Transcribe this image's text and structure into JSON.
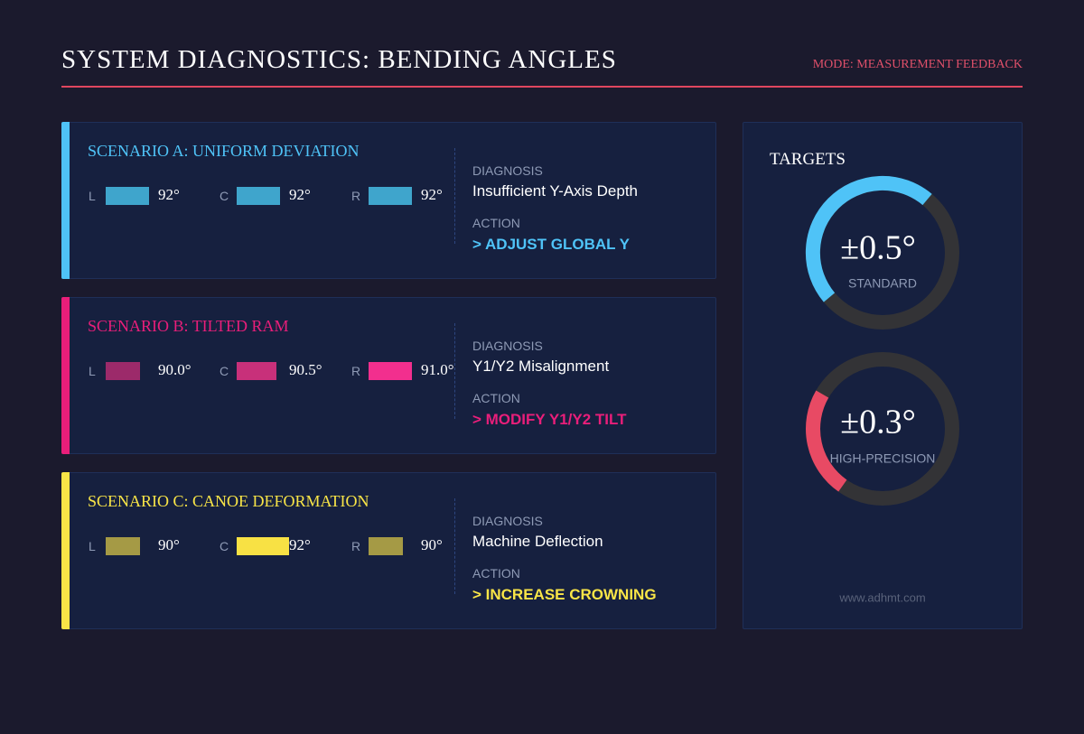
{
  "header": {
    "title": "SYSTEM DIAGNOSTICS: BENDING ANGLES",
    "mode": "MODE: MEASUREMENT FEEDBACK"
  },
  "scenarios": [
    {
      "title": "SCENARIO A: UNIFORM DEVIATION",
      "color": "#4fc3f7",
      "readings": [
        {
          "side": "L",
          "value": "92°",
          "color": "#3fa5cc"
        },
        {
          "side": "C",
          "value": "92°",
          "color": "#3fa5cc"
        },
        {
          "side": "R",
          "value": "92°",
          "color": "#3fa5cc"
        }
      ],
      "diagnosis_label": "DIAGNOSIS",
      "diagnosis": "Insufficient Y-Axis Depth",
      "action_label": "ACTION",
      "action": "> ADJUST GLOBAL Y"
    },
    {
      "title": "SCENARIO B: TILTED RAM",
      "color": "#e91e7a",
      "readings": [
        {
          "side": "L",
          "value": "90.0°",
          "color": "#9c2a6a"
        },
        {
          "side": "C",
          "value": "90.5°",
          "color": "#c8307a"
        },
        {
          "side": "R",
          "value": "91.0°",
          "color": "#f22f8e"
        }
      ],
      "diagnosis_label": "DIAGNOSIS",
      "diagnosis": "Y1/Y2 Misalignment",
      "action_label": "ACTION",
      "action": "> MODIFY Y1/Y2 TILT"
    },
    {
      "title": "SCENARIO C: CANOE DEFORMATION",
      "color": "#f9e547",
      "readings": [
        {
          "side": "L",
          "value": "90°",
          "color": "#a59a45"
        },
        {
          "side": "C",
          "value": "92°",
          "color": "#f8e144"
        },
        {
          "side": "R",
          "value": "90°",
          "color": "#a59a45"
        }
      ],
      "diagnosis_label": "DIAGNOSIS",
      "diagnosis": "Machine Deflection",
      "action_label": "ACTION",
      "action": "> INCREASE CROWNING"
    }
  ],
  "targets": {
    "title": "TARGETS",
    "gauges": [
      {
        "value": "±0.5°",
        "label": "STANDARD",
        "color": "#4fc3f7"
      },
      {
        "value": "±0.3°",
        "label": "HIGH-PRECISION",
        "color": "#e84a64"
      }
    ],
    "footer": "www.adhmt.com"
  }
}
